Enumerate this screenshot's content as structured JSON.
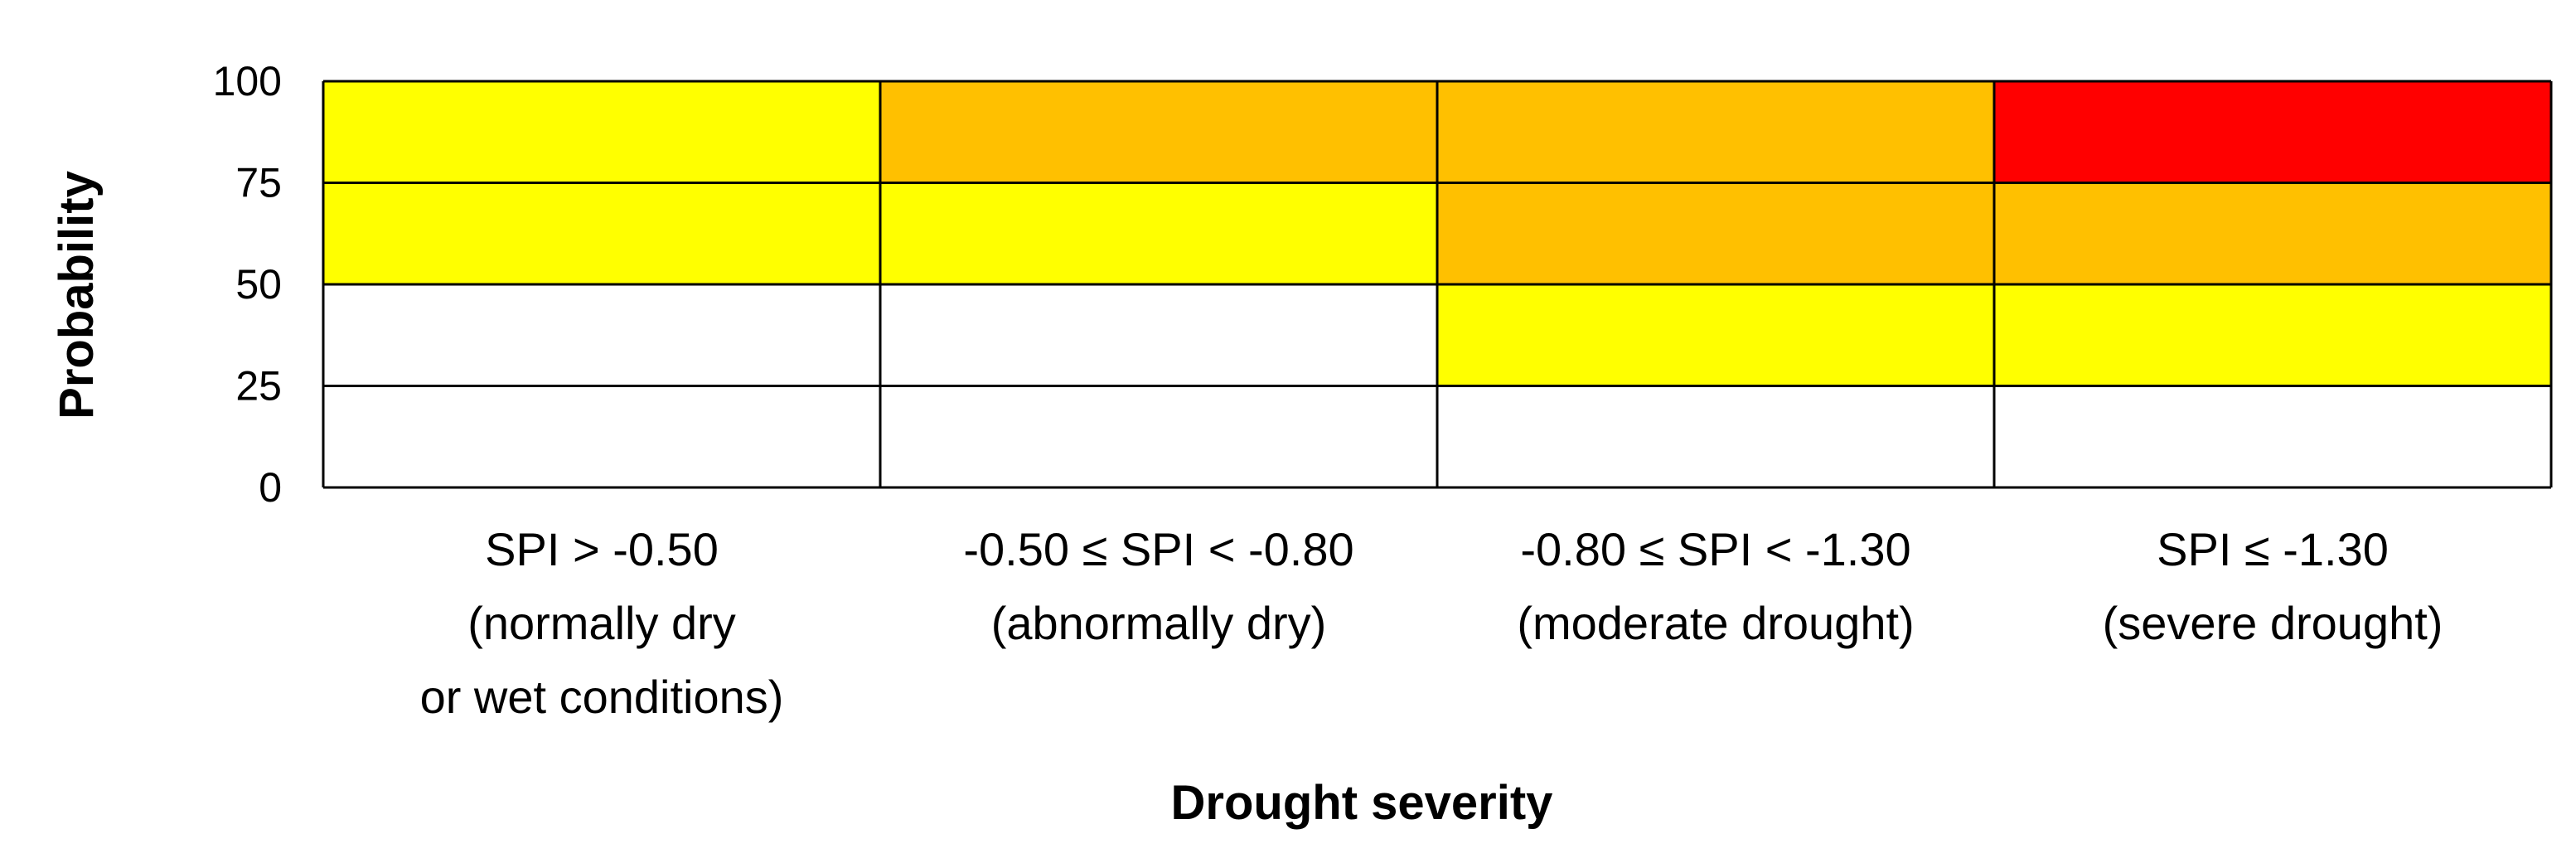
{
  "chart_data": {
    "type": "heatmap",
    "title": "",
    "xlabel": "Drought severity",
    "ylabel": "Probability",
    "ylim": [
      0,
      100
    ],
    "y_ticks": [
      "0",
      "25",
      "50",
      "75",
      "100"
    ],
    "grid": true,
    "categories": [
      [
        "SPI > -0.50",
        "(normally dry",
        "or wet conditions)"
      ],
      [
        "-0.50 ≤ SPI < -0.80",
        "(abnormally dry)"
      ],
      [
        "-0.80 ≤ SPI < -1.30",
        "(moderate drought)"
      ],
      [
        "SPI ≤  -1.30",
        "(severe drought)"
      ]
    ],
    "probability_bands": [
      [
        0,
        25
      ],
      [
        25,
        50
      ],
      [
        50,
        75
      ],
      [
        75,
        100
      ]
    ],
    "colors": {
      "none": "#ffffff",
      "yellow": "#ffff00",
      "orange": "#ffc000",
      "red": "#ff0000"
    },
    "cells": [
      [
        "none",
        "none",
        "none",
        "none"
      ],
      [
        "none",
        "none",
        "yellow",
        "yellow"
      ],
      [
        "yellow",
        "yellow",
        "orange",
        "orange"
      ],
      [
        "yellow",
        "orange",
        "orange",
        "red"
      ]
    ]
  }
}
